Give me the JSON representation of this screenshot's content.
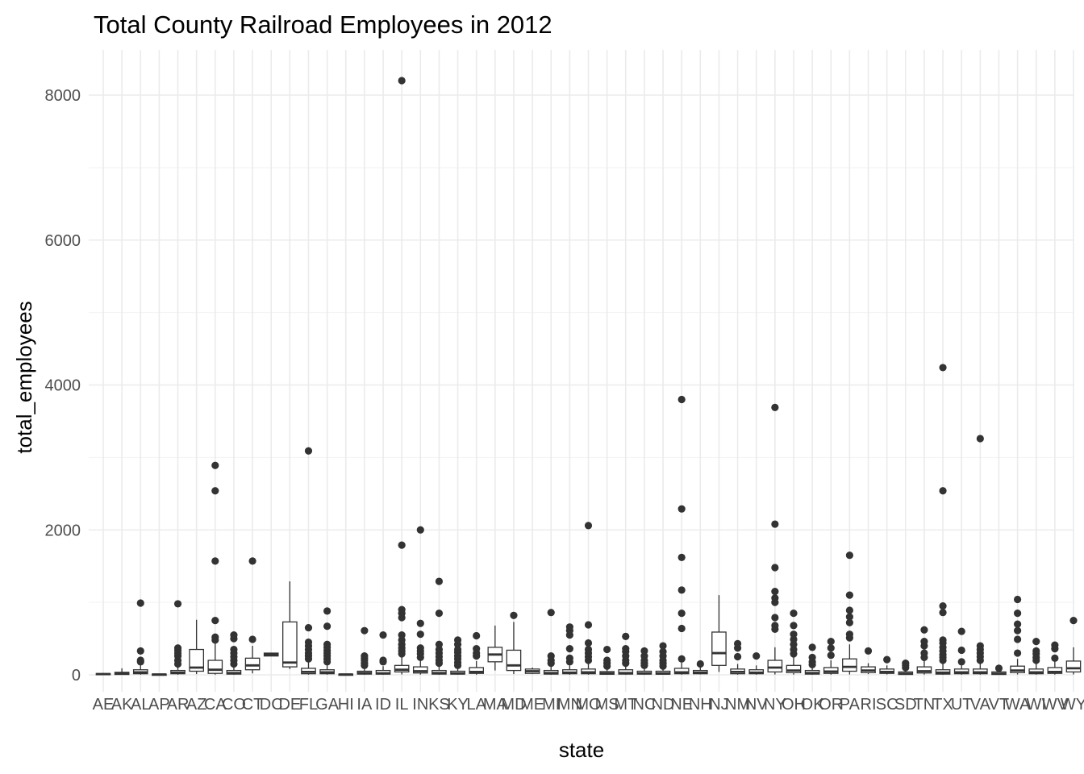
{
  "chart_data": {
    "type": "boxplot",
    "title": "Total County Railroad Employees in 2012",
    "xlabel": "state",
    "ylabel": "total_employees",
    "ylim": [
      -150,
      8600
    ],
    "yticks": [
      0,
      2000,
      4000,
      6000,
      8000
    ],
    "grid": true,
    "legend": "none",
    "colors": {
      "box_stroke": "#333333",
      "box_fill": "#ffffff",
      "grid": "#ebebeb",
      "tick_text": "#4d4d4d"
    },
    "categories": [
      "AE",
      "AK",
      "AL",
      "AP",
      "AR",
      "AZ",
      "CA",
      "CO",
      "CT",
      "DC",
      "DE",
      "FL",
      "GA",
      "HI",
      "IA",
      "ID",
      "IL",
      "IN",
      "KS",
      "KY",
      "LA",
      "MA",
      "MD",
      "ME",
      "MI",
      "MN",
      "MO",
      "MS",
      "MT",
      "NC",
      "ND",
      "NE",
      "NH",
      "NJ",
      "NM",
      "NV",
      "NY",
      "OH",
      "OK",
      "OR",
      "PA",
      "RI",
      "SC",
      "SD",
      "TN",
      "TX",
      "UT",
      "VA",
      "VT",
      "WA",
      "WI",
      "WV",
      "WY"
    ],
    "boxes": [
      {
        "state": "AE",
        "q1": 5,
        "median": 10,
        "q3": 18,
        "lo": 2,
        "hi": 25,
        "outliers": []
      },
      {
        "state": "AK",
        "q1": 5,
        "median": 15,
        "q3": 35,
        "lo": 2,
        "hi": 90,
        "outliers": []
      },
      {
        "state": "AL",
        "q1": 15,
        "median": 35,
        "q3": 70,
        "lo": 2,
        "hi": 140,
        "outliers": [
          180,
          200,
          330,
          990
        ]
      },
      {
        "state": "AP",
        "q1": 2,
        "median": 5,
        "q3": 10,
        "lo": 1,
        "hi": 15,
        "outliers": []
      },
      {
        "state": "AR",
        "q1": 15,
        "median": 30,
        "q3": 60,
        "lo": 2,
        "hi": 110,
        "outliers": [
          150,
          200,
          260,
          300,
          340,
          370,
          980
        ]
      },
      {
        "state": "AZ",
        "q1": 50,
        "median": 100,
        "q3": 350,
        "lo": 10,
        "hi": 760,
        "outliers": []
      },
      {
        "state": "CA",
        "q1": 20,
        "median": 70,
        "q3": 200,
        "lo": 2,
        "hi": 440,
        "outliers": [
          480,
          520,
          750,
          1570,
          2540,
          2890
        ]
      },
      {
        "state": "CO",
        "q1": 10,
        "median": 25,
        "q3": 60,
        "lo": 1,
        "hi": 120,
        "outliers": [
          150,
          200,
          250,
          300,
          350,
          500,
          550
        ]
      },
      {
        "state": "CT",
        "q1": 70,
        "median": 130,
        "q3": 230,
        "lo": 20,
        "hi": 400,
        "outliers": [
          490,
          1570
        ]
      },
      {
        "state": "DC",
        "q1": 260,
        "median": 280,
        "q3": 300,
        "lo": 260,
        "hi": 300,
        "outliers": []
      },
      {
        "state": "DE",
        "q1": 110,
        "median": 170,
        "q3": 730,
        "lo": 80,
        "hi": 1290,
        "outliers": []
      },
      {
        "state": "FL",
        "q1": 15,
        "median": 40,
        "q3": 90,
        "lo": 2,
        "hi": 180,
        "outliers": [
          220,
          260,
          300,
          350,
          400,
          450,
          650,
          3090
        ]
      },
      {
        "state": "GA",
        "q1": 15,
        "median": 35,
        "q3": 70,
        "lo": 2,
        "hi": 140,
        "outliers": [
          180,
          220,
          260,
          300,
          340,
          380,
          420,
          670,
          880
        ]
      },
      {
        "state": "HI",
        "q1": 2,
        "median": 5,
        "q3": 10,
        "lo": 1,
        "hi": 15,
        "outliers": []
      },
      {
        "state": "IA",
        "q1": 10,
        "median": 25,
        "q3": 50,
        "lo": 1,
        "hi": 100,
        "outliers": [
          130,
          160,
          200,
          230,
          260,
          610
        ]
      },
      {
        "state": "ID",
        "q1": 10,
        "median": 20,
        "q3": 60,
        "lo": 1,
        "hi": 120,
        "outliers": [
          180,
          200,
          550
        ]
      },
      {
        "state": "IL",
        "q1": 40,
        "median": 70,
        "q3": 130,
        "lo": 5,
        "hi": 240,
        "outliers": [
          290,
          330,
          370,
          420,
          480,
          550,
          790,
          850,
          900,
          1790,
          8200
        ]
      },
      {
        "state": "IN",
        "q1": 25,
        "median": 50,
        "q3": 110,
        "lo": 3,
        "hi": 200,
        "outliers": [
          240,
          290,
          330,
          370,
          560,
          710,
          2000
        ]
      },
      {
        "state": "KS",
        "q1": 10,
        "median": 25,
        "q3": 60,
        "lo": 1,
        "hi": 120,
        "outliers": [
          160,
          200,
          250,
          300,
          350,
          420,
          850,
          1290
        ]
      },
      {
        "state": "KY",
        "q1": 10,
        "median": 20,
        "q3": 50,
        "lo": 1,
        "hi": 100,
        "outliers": [
          130,
          170,
          220,
          260,
          310,
          350,
          420,
          480
        ]
      },
      {
        "state": "LA",
        "q1": 20,
        "median": 40,
        "q3": 100,
        "lo": 2,
        "hi": 190,
        "outliers": [
          260,
          300,
          360,
          540
        ]
      },
      {
        "state": "MA",
        "q1": 180,
        "median": 280,
        "q3": 380,
        "lo": 60,
        "hi": 680,
        "outliers": []
      },
      {
        "state": "MD",
        "q1": 60,
        "median": 130,
        "q3": 340,
        "lo": 10,
        "hi": 730,
        "outliers": [
          820
        ]
      },
      {
        "state": "ME",
        "q1": 20,
        "median": 50,
        "q3": 80,
        "lo": 10,
        "hi": 100,
        "outliers": []
      },
      {
        "state": "MI",
        "q1": 10,
        "median": 25,
        "q3": 60,
        "lo": 1,
        "hi": 120,
        "outliers": [
          160,
          200,
          260,
          860
        ]
      },
      {
        "state": "MN",
        "q1": 15,
        "median": 30,
        "q3": 70,
        "lo": 2,
        "hi": 130,
        "outliers": [
          180,
          230,
          360,
          550,
          610,
          660
        ]
      },
      {
        "state": "MO",
        "q1": 15,
        "median": 35,
        "q3": 80,
        "lo": 2,
        "hi": 150,
        "outliers": [
          200,
          250,
          300,
          350,
          440,
          690,
          2060
        ]
      },
      {
        "state": "MS",
        "q1": 8,
        "median": 20,
        "q3": 45,
        "lo": 1,
        "hi": 90,
        "outliers": [
          120,
          160,
          200,
          350
        ]
      },
      {
        "state": "MT",
        "q1": 10,
        "median": 25,
        "q3": 70,
        "lo": 1,
        "hi": 130,
        "outliers": [
          160,
          200,
          260,
          320,
          360,
          530
        ]
      },
      {
        "state": "NC",
        "q1": 10,
        "median": 20,
        "q3": 50,
        "lo": 1,
        "hi": 100,
        "outliers": [
          130,
          160,
          200,
          260,
          330
        ]
      },
      {
        "state": "ND",
        "q1": 8,
        "median": 20,
        "q3": 50,
        "lo": 1,
        "hi": 90,
        "outliers": [
          120,
          160,
          200,
          260,
          320,
          400
        ]
      },
      {
        "state": "NE",
        "q1": 15,
        "median": 35,
        "q3": 90,
        "lo": 2,
        "hi": 170,
        "outliers": [
          220,
          640,
          850,
          1170,
          1620,
          2290,
          3800
        ]
      },
      {
        "state": "NH",
        "q1": 15,
        "median": 30,
        "q3": 60,
        "lo": 5,
        "hi": 100,
        "outliers": [
          150
        ]
      },
      {
        "state": "NJ",
        "q1": 130,
        "median": 300,
        "q3": 590,
        "lo": 40,
        "hi": 1100,
        "outliers": []
      },
      {
        "state": "NM",
        "q1": 15,
        "median": 40,
        "q3": 80,
        "lo": 2,
        "hi": 150,
        "outliers": [
          250,
          370,
          430
        ]
      },
      {
        "state": "NV",
        "q1": 15,
        "median": 30,
        "q3": 70,
        "lo": 2,
        "hi": 130,
        "outliers": [
          260
        ]
      },
      {
        "state": "NY",
        "q1": 40,
        "median": 100,
        "q3": 200,
        "lo": 5,
        "hi": 380,
        "outliers": [
          630,
          680,
          790,
          1000,
          1060,
          1150,
          1480,
          2080,
          3690
        ]
      },
      {
        "state": "OH",
        "q1": 30,
        "median": 60,
        "q3": 130,
        "lo": 3,
        "hi": 240,
        "outliers": [
          290,
          350,
          420,
          490,
          560,
          680,
          850
        ]
      },
      {
        "state": "OK",
        "q1": 10,
        "median": 25,
        "q3": 60,
        "lo": 1,
        "hi": 110,
        "outliers": [
          140,
          180,
          240,
          380
        ]
      },
      {
        "state": "OR",
        "q1": 20,
        "median": 45,
        "q3": 100,
        "lo": 2,
        "hi": 200,
        "outliers": [
          270,
          370,
          460
        ]
      },
      {
        "state": "PA",
        "q1": 50,
        "median": 110,
        "q3": 220,
        "lo": 5,
        "hi": 420,
        "outliers": [
          510,
          560,
          720,
          800,
          890,
          1100,
          1650
        ]
      },
      {
        "state": "RI",
        "q1": 30,
        "median": 60,
        "q3": 110,
        "lo": 10,
        "hi": 160,
        "outliers": [
          330
        ]
      },
      {
        "state": "SC",
        "q1": 20,
        "median": 40,
        "q3": 80,
        "lo": 5,
        "hi": 130,
        "outliers": [
          210
        ]
      },
      {
        "state": "SD",
        "q1": 5,
        "median": 15,
        "q3": 40,
        "lo": 1,
        "hi": 80,
        "outliers": [
          100,
          130,
          160
        ]
      },
      {
        "state": "TN",
        "q1": 25,
        "median": 50,
        "q3": 110,
        "lo": 3,
        "hi": 200,
        "outliers": [
          240,
          300,
          400,
          460,
          620
        ]
      },
      {
        "state": "TX",
        "q1": 10,
        "median": 30,
        "q3": 70,
        "lo": 1,
        "hi": 150,
        "outliers": [
          200,
          240,
          280,
          330,
          380,
          440,
          480,
          860,
          950,
          2540,
          4240
        ]
      },
      {
        "state": "UT",
        "q1": 15,
        "median": 35,
        "q3": 80,
        "lo": 2,
        "hi": 150,
        "outliers": [
          180,
          340,
          600
        ]
      },
      {
        "state": "VA",
        "q1": 15,
        "median": 35,
        "q3": 80,
        "lo": 2,
        "hi": 150,
        "outliers": [
          200,
          250,
          300,
          350,
          400,
          3260
        ]
      },
      {
        "state": "VT",
        "q1": 5,
        "median": 15,
        "q3": 40,
        "lo": 1,
        "hi": 70,
        "outliers": [
          90
        ]
      },
      {
        "state": "WA",
        "q1": 30,
        "median": 60,
        "q3": 120,
        "lo": 5,
        "hi": 220,
        "outliers": [
          300,
          490,
          610,
          700,
          850,
          1040
        ]
      },
      {
        "state": "WI",
        "q1": 15,
        "median": 35,
        "q3": 80,
        "lo": 2,
        "hi": 150,
        "outliers": [
          200,
          240,
          290,
          330,
          460
        ]
      },
      {
        "state": "WV",
        "q1": 20,
        "median": 40,
        "q3": 100,
        "lo": 3,
        "hi": 190,
        "outliers": [
          230,
          360,
          410
        ]
      },
      {
        "state": "WY",
        "q1": 40,
        "median": 90,
        "q3": 190,
        "lo": 5,
        "hi": 380,
        "outliers": [
          750
        ]
      }
    ]
  }
}
